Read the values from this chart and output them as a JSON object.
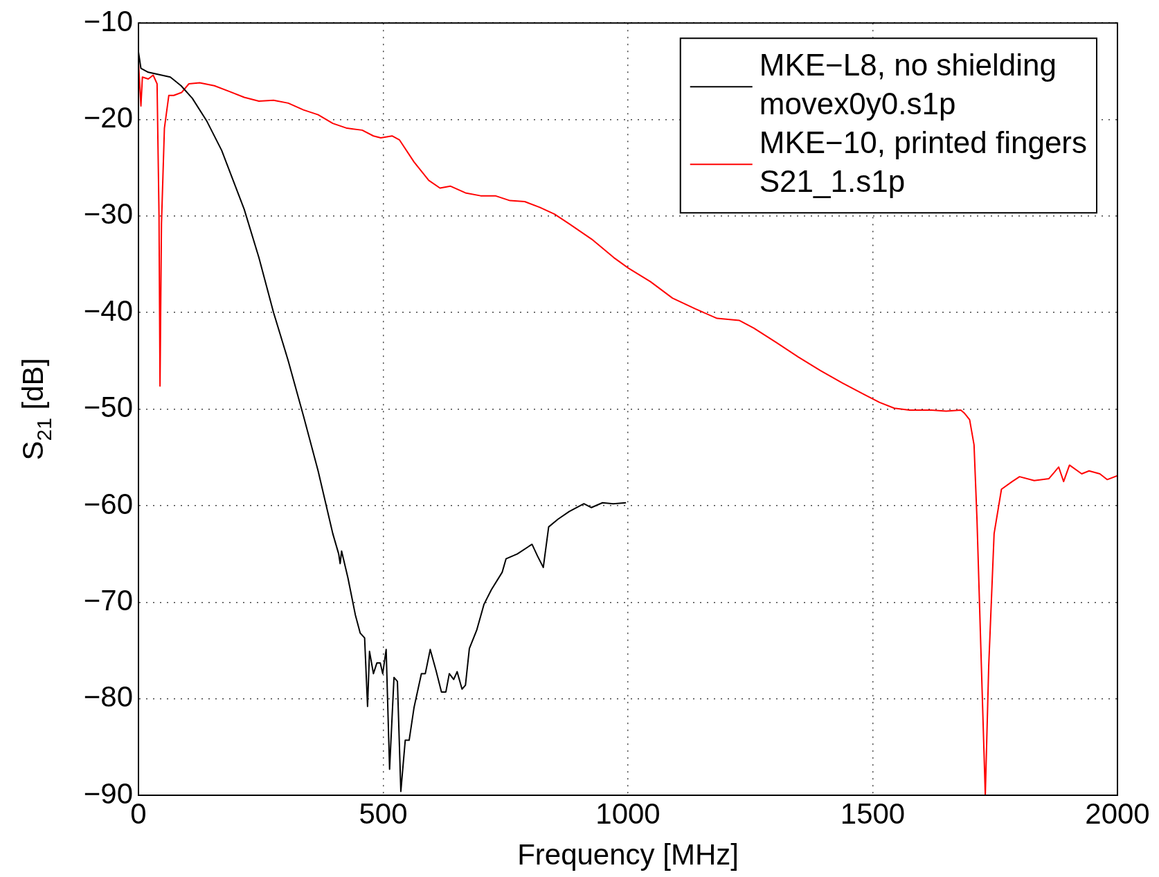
{
  "chart_data": {
    "type": "line",
    "xlabel": "Frequency [MHz]",
    "ylabel": "S$_{21}$ [dB]",
    "xlim": [
      0,
      2000
    ],
    "xticks": [
      0,
      500,
      1000,
      1500,
      2000
    ],
    "ylim": [
      -90,
      -10
    ],
    "yticks": [
      -90,
      -80,
      -70,
      -60,
      -50,
      -40,
      -30,
      -20,
      -10
    ],
    "grid": true,
    "legend": "top right",
    "marker": "none",
    "line_style": "solid",
    "series": [
      {
        "name": "MKE−L8, no shielding\nmovex0y0.s1p",
        "color": "#000000",
        "x": [
          0,
          5,
          20,
          65,
          87,
          110,
          140,
          170,
          216,
          246,
          276,
          306,
          337,
          367,
          397,
          409,
          412,
          415,
          428,
          443,
          453,
          462,
          468,
          472,
          480,
          487,
          494,
          499,
          506,
          513,
          522,
          529,
          536,
          545,
          553,
          563,
          578,
          586,
          596,
          608,
          619,
          628,
          635,
          644,
          651,
          661,
          668,
          676,
          691,
          706,
          721,
          743,
          751,
          774,
          804,
          815,
          827,
          838,
          857,
          880,
          910,
          925,
          948,
          970,
          996
        ],
        "values": [
          -13,
          -14.7,
          -15.1,
          -15.6,
          -16.5,
          -17.8,
          -20.2,
          -23.2,
          -29.3,
          -34.3,
          -40,
          -45,
          -50.7,
          -56.4,
          -62.9,
          -65,
          -66,
          -64.7,
          -67.5,
          -71.3,
          -73.2,
          -73.7,
          -80.8,
          -75.1,
          -77.4,
          -76.3,
          -76.3,
          -77.4,
          -74.9,
          -87.3,
          -77.8,
          -78.2,
          -89.6,
          -84.3,
          -84.3,
          -80.9,
          -77.4,
          -77.4,
          -74.9,
          -77.1,
          -79.3,
          -79.3,
          -77.4,
          -78,
          -77.2,
          -79,
          -78.6,
          -74.8,
          -72.9,
          -70.2,
          -68.7,
          -66.9,
          -65.5,
          -65,
          -64,
          -65.2,
          -66.4,
          -62.2,
          -61.4,
          -60.6,
          -59.8,
          -60.2,
          -59.7,
          -59.8,
          -59.7
        ]
      },
      {
        "name": "MKE−10, printed fingers\nS21_1.s1p",
        "color": "#ff0000",
        "x": [
          0,
          5,
          8,
          20,
          30,
          38,
          42,
          44,
          47,
          53,
          62,
          72,
          88,
          103,
          125,
          155,
          186,
          216,
          246,
          276,
          306,
          337,
          367,
          397,
          426,
          457,
          480,
          495,
          518,
          533,
          563,
          593,
          616,
          637,
          668,
          699,
          729,
          759,
          789,
          820,
          850,
          880,
          926,
          971,
          1001,
          1046,
          1091,
          1137,
          1182,
          1227,
          1257,
          1303,
          1348,
          1393,
          1438,
          1483,
          1514,
          1544,
          1575,
          1620,
          1650,
          1680,
          1687,
          1698,
          1707,
          1713,
          1722,
          1730,
          1737,
          1748,
          1763,
          1785,
          1800,
          1830,
          1860,
          1880,
          1890,
          1902,
          1927,
          1942,
          1964,
          1979,
          2000
        ],
        "values": [
          -14,
          -18.6,
          -15.6,
          -15.8,
          -15.4,
          -16.3,
          -30,
          -47.6,
          -30.8,
          -20.9,
          -17.5,
          -17.5,
          -17.2,
          -16.3,
          -16.2,
          -16.5,
          -17.1,
          -17.7,
          -18.1,
          -18,
          -18.3,
          -19,
          -19.5,
          -20.4,
          -20.9,
          -21.1,
          -21.7,
          -21.9,
          -21.7,
          -22.1,
          -24.4,
          -26.3,
          -27.1,
          -26.9,
          -27.6,
          -27.9,
          -27.9,
          -28.4,
          -28.5,
          -29.1,
          -29.8,
          -30.8,
          -32.4,
          -34.3,
          -35.4,
          -36.8,
          -38.5,
          -39.6,
          -40.6,
          -40.8,
          -41.6,
          -43.1,
          -44.6,
          -46,
          -47.3,
          -48.5,
          -49.3,
          -49.9,
          -50.1,
          -50.1,
          -50.2,
          -50.1,
          -50.4,
          -51.1,
          -53.7,
          -61.4,
          -76.6,
          -90,
          -76.6,
          -62.9,
          -58.3,
          -57.5,
          -57,
          -57.4,
          -57.2,
          -56,
          -57.5,
          -55.8,
          -56.7,
          -56.4,
          -56.7,
          -57.3,
          -56.9
        ]
      }
    ]
  }
}
